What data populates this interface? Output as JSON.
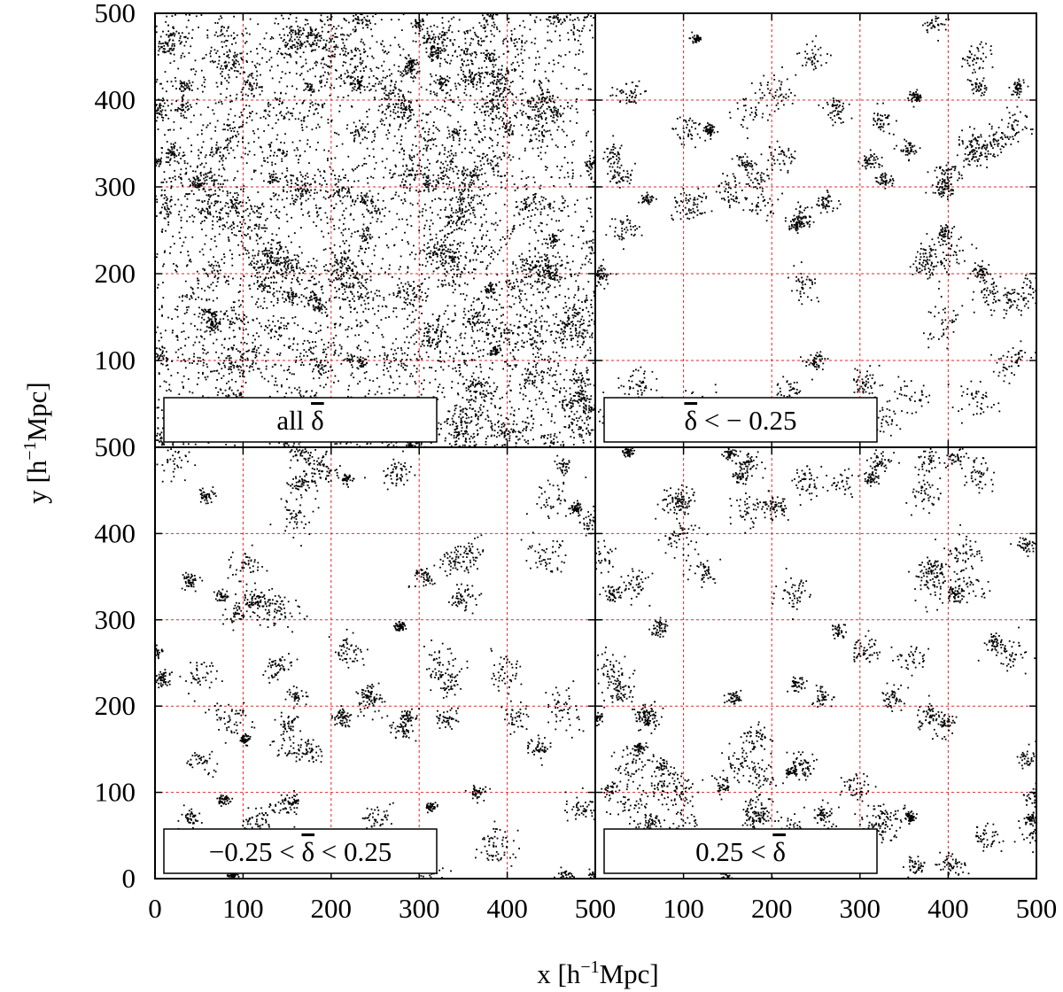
{
  "figure": {
    "xlabel_main": "x [h",
    "xlabel_exp": "−1",
    "xlabel_tail": "Mpc]",
    "ylabel_main": "y [h",
    "ylabel_exp": "−1",
    "ylabel_tail": "Mpc]"
  },
  "chart_data": [
    {
      "type": "scatter",
      "panel": "top-left",
      "label_parts": [
        "all ",
        "δ",
        ""
      ],
      "xlim": [
        0,
        500
      ],
      "ylim": [
        0,
        500
      ],
      "xticks": [],
      "yticks": [
        "100",
        "200",
        "300",
        "400",
        "500"
      ],
      "grid": "dashed red at 100, 200, 300, 400",
      "density": "very high, dense filament network",
      "point_count_approx": 9000
    },
    {
      "type": "scatter",
      "panel": "top-right",
      "label_parts": [
        "",
        "δ",
        " < − 0.25"
      ],
      "xlim": [
        0,
        500
      ],
      "ylim": [
        0,
        500
      ],
      "xticks": [],
      "yticks": [],
      "grid": "dashed red at 100, 200, 300, 400",
      "density": "sparse, clumpy",
      "point_count_approx": 2600
    },
    {
      "type": "scatter",
      "panel": "bottom-left",
      "label_parts": [
        "−0.25 <  ",
        "δ",
        " < 0.25"
      ],
      "xlim": [
        0,
        500
      ],
      "ylim": [
        0,
        500
      ],
      "xticks": [
        "0",
        "100",
        "200",
        "300",
        "400",
        "500"
      ],
      "yticks": [
        "0",
        "100",
        "200",
        "300",
        "400",
        "500"
      ],
      "grid": "dashed red at 100, 200, 300, 400",
      "density": "moderate, scattered small clumps",
      "point_count_approx": 3000
    },
    {
      "type": "scatter",
      "panel": "bottom-right",
      "label_parts": [
        "0.25 < ",
        "δ",
        ""
      ],
      "xlim": [
        0,
        500
      ],
      "ylim": [
        0,
        500
      ],
      "xticks": [
        "0",
        "100",
        "200",
        "300",
        "400",
        "500"
      ],
      "yticks": [],
      "grid": "dashed red at 100, 200, 300, 400",
      "density": "filamentary clusters",
      "point_count_approx": 3600
    }
  ]
}
